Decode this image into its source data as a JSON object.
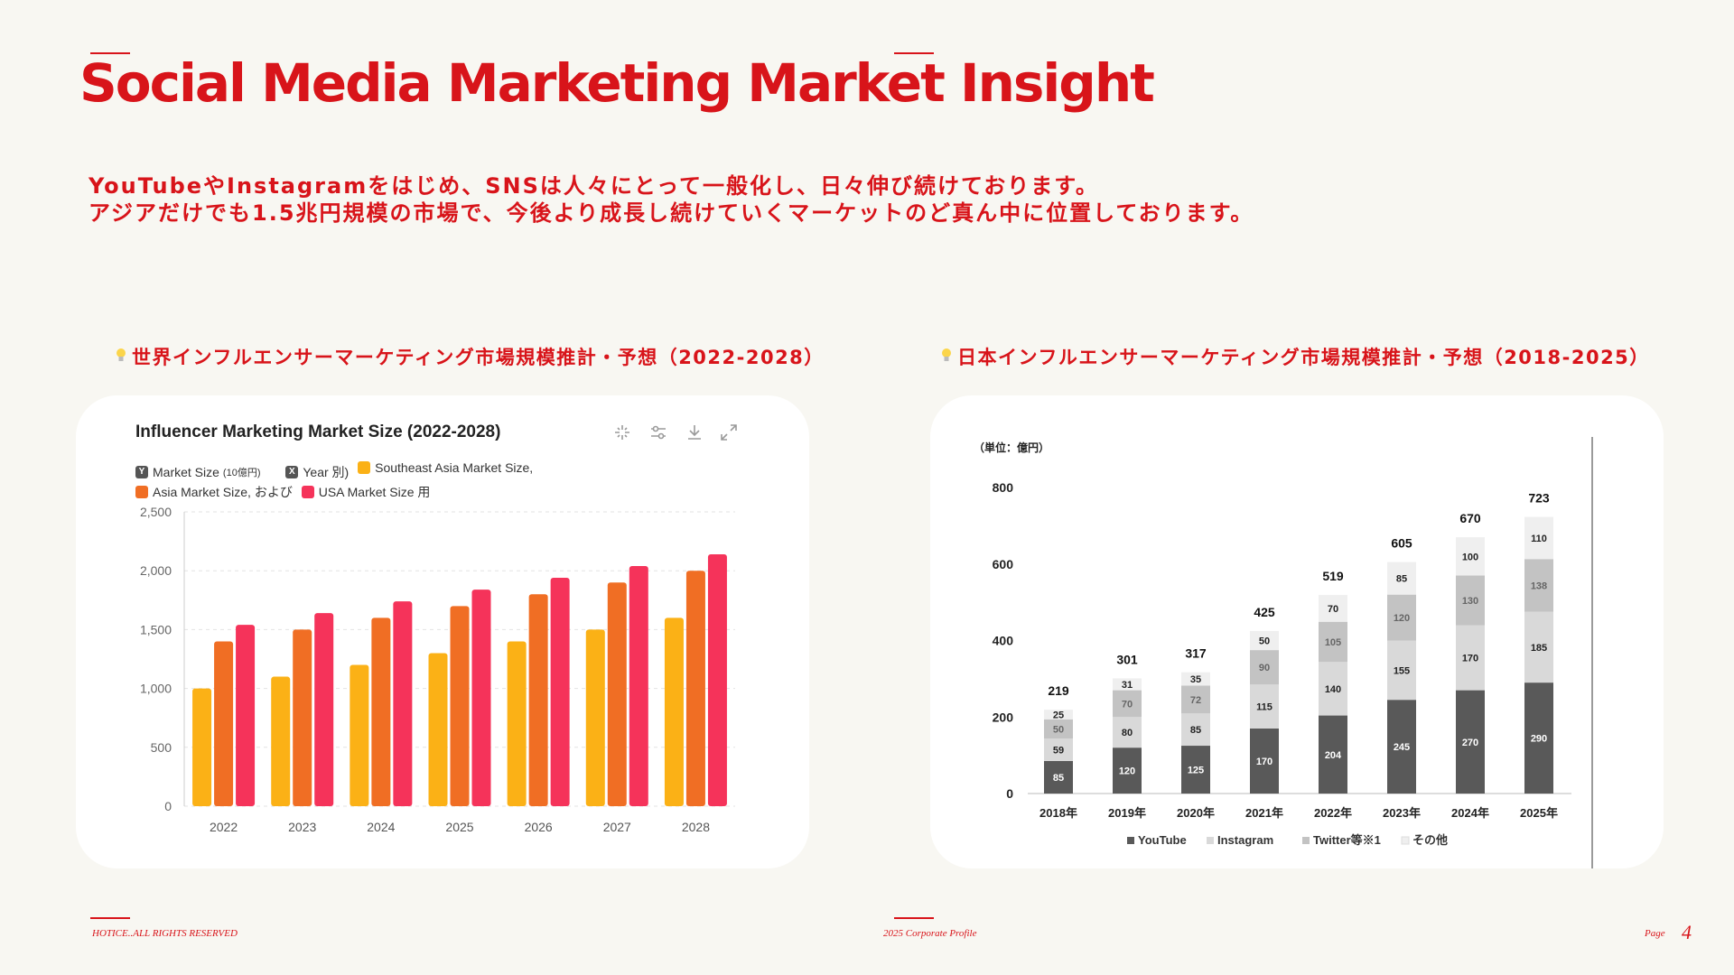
{
  "title": "Social Media Marketing Market Insight",
  "intro": [
    "YouTubeやInstagramをはじめ、SNSは人々にとって一般化し、日々伸び続けております。",
    "アジアだけでも1.5兆円規模の市場で、今後より成長し続けていくマーケットのど真ん中に位置しております。"
  ],
  "sections": {
    "left_heading": "世界インフルエンサーマーケティング市場規模推計・予想（2022-2028）",
    "right_heading": "日本インフルエンサーマーケティング市場規模推計・予想（2018-2025）"
  },
  "left_chart": {
    "legend_row1": [
      {
        "icon": "Y",
        "text": "Market Size",
        "small": "(10億円)"
      },
      {
        "icon": "X",
        "text": "Year 別)"
      },
      {
        "color": "#fbb116",
        "text": "Southeast Asia Market Size,"
      }
    ],
    "legend_row2": [
      {
        "color": "#f06e24",
        "text": "Asia Market Size, および"
      },
      {
        "color": "#f5335a",
        "text": "USA Market Size 用"
      }
    ]
  },
  "right_chart": {
    "unit_label": "（単位：億円）"
  },
  "chart_data": [
    {
      "type": "bar",
      "title": "Influencer Marketing Market Size (2022-2028)",
      "categories": [
        "2022",
        "2023",
        "2024",
        "2025",
        "2026",
        "2027",
        "2028"
      ],
      "series": [
        {
          "name": "Southeast Asia Market Size",
          "color": "#fbb116",
          "values": [
            1000,
            1100,
            1200,
            1300,
            1400,
            1500,
            1600
          ]
        },
        {
          "name": "Asia Market Size",
          "color": "#f06e24",
          "values": [
            1400,
            1500,
            1600,
            1700,
            1800,
            1900,
            2000
          ]
        },
        {
          "name": "USA Market Size",
          "color": "#f5335a",
          "values": [
            1540,
            1640,
            1740,
            1840,
            1940,
            2040,
            2140
          ]
        }
      ],
      "ylim": [
        0,
        2500
      ],
      "yticks": [
        "0",
        "500",
        "1,000",
        "1,500",
        "2,000",
        "2,500"
      ],
      "grid": true,
      "legend_position": "top-left"
    },
    {
      "type": "bar",
      "stacked": true,
      "ylabel": "（単位：億円）",
      "categories": [
        "2018年",
        "2019年",
        "2020年",
        "2021年",
        "2022年",
        "2023年",
        "2024年",
        "2025年"
      ],
      "series": [
        {
          "name": "YouTube",
          "color": "#595959",
          "values": [
            85,
            120,
            125,
            170,
            204,
            245,
            270,
            290
          ]
        },
        {
          "name": "Instagram",
          "color": "#d9d9d9",
          "values": [
            59,
            80,
            85,
            115,
            140,
            155,
            170,
            185
          ]
        },
        {
          "name": "Twitter等※1",
          "color": "#c3c3c3",
          "values": [
            50,
            70,
            72,
            90,
            105,
            120,
            130,
            138
          ]
        },
        {
          "name": "その他",
          "color": "#efefef",
          "values": [
            25,
            31,
            35,
            50,
            70,
            85,
            100,
            110
          ]
        }
      ],
      "totals": [
        219,
        301,
        317,
        425,
        519,
        605,
        670,
        723
      ],
      "ylim": [
        0,
        800
      ],
      "yticks": [
        "0",
        "200",
        "400",
        "600",
        "800"
      ],
      "legend_position": "bottom"
    }
  ],
  "footer": {
    "left": "HOTICE..ALL RIGHTS RESERVED",
    "center": "2025 Corporate Profile",
    "page_label": "Page",
    "page_number": "4"
  }
}
